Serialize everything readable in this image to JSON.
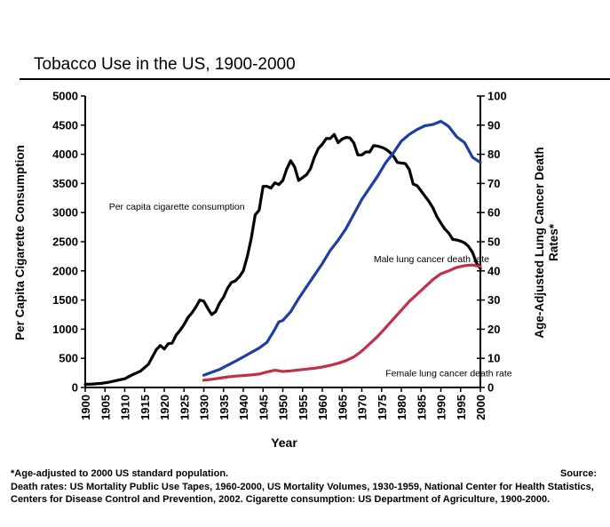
{
  "chart_data": {
    "type": "line",
    "title": "Tobacco Use in the US, 1900-2000",
    "xlabel": "Year",
    "ylabel_left": "Per Capita Cigarette Consumption",
    "ylabel_right": "Age-Adjusted Lung Cancer Death Rates*",
    "xlim": [
      1900,
      2000
    ],
    "ylim_left": [
      0,
      5000
    ],
    "ylim_right": [
      0,
      100
    ],
    "x_ticks": [
      "1900",
      "1905",
      "1910",
      "1915",
      "1920",
      "1925",
      "1930",
      "1935",
      "1940",
      "1945",
      "1950",
      "1955",
      "1960",
      "1965",
      "1970",
      "1975",
      "1980",
      "1985",
      "1990",
      "1995",
      "2000"
    ],
    "y_ticks_left": [
      "0",
      "500",
      "1000",
      "1500",
      "2000",
      "2500",
      "3000",
      "3500",
      "4000",
      "4500",
      "5000"
    ],
    "y_ticks_right": [
      "0",
      "10",
      "20",
      "30",
      "40",
      "50",
      "60",
      "70",
      "80",
      "90",
      "100"
    ],
    "grid": false,
    "series": [
      {
        "name": "Per capita cigarette consumption",
        "axis": "left",
        "color": "#000000",
        "label_pos": [
          1906,
          3050
        ],
        "points": [
          [
            1900,
            54
          ],
          [
            1902,
            60
          ],
          [
            1904,
            70
          ],
          [
            1906,
            90
          ],
          [
            1908,
            120
          ],
          [
            1910,
            150
          ],
          [
            1912,
            220
          ],
          [
            1914,
            280
          ],
          [
            1916,
            400
          ],
          [
            1918,
            650
          ],
          [
            1919,
            720
          ],
          [
            1920,
            660
          ],
          [
            1921,
            750
          ],
          [
            1922,
            760
          ],
          [
            1923,
            900
          ],
          [
            1924,
            980
          ],
          [
            1925,
            1080
          ],
          [
            1926,
            1200
          ],
          [
            1927,
            1280
          ],
          [
            1928,
            1380
          ],
          [
            1929,
            1500
          ],
          [
            1930,
            1480
          ],
          [
            1931,
            1360
          ],
          [
            1932,
            1250
          ],
          [
            1933,
            1300
          ],
          [
            1934,
            1450
          ],
          [
            1935,
            1550
          ],
          [
            1936,
            1700
          ],
          [
            1937,
            1800
          ],
          [
            1938,
            1830
          ],
          [
            1939,
            1900
          ],
          [
            1940,
            2000
          ],
          [
            1941,
            2240
          ],
          [
            1942,
            2550
          ],
          [
            1943,
            2960
          ],
          [
            1944,
            3040
          ],
          [
            1945,
            3450
          ],
          [
            1946,
            3450
          ],
          [
            1947,
            3420
          ],
          [
            1948,
            3510
          ],
          [
            1949,
            3480
          ],
          [
            1950,
            3550
          ],
          [
            1951,
            3750
          ],
          [
            1952,
            3890
          ],
          [
            1953,
            3780
          ],
          [
            1954,
            3550
          ],
          [
            1955,
            3600
          ],
          [
            1956,
            3650
          ],
          [
            1957,
            3750
          ],
          [
            1958,
            3950
          ],
          [
            1959,
            4100
          ],
          [
            1960,
            4170
          ],
          [
            1961,
            4270
          ],
          [
            1962,
            4270
          ],
          [
            1963,
            4340
          ],
          [
            1964,
            4200
          ],
          [
            1965,
            4260
          ],
          [
            1966,
            4290
          ],
          [
            1967,
            4280
          ],
          [
            1968,
            4190
          ],
          [
            1969,
            3990
          ],
          [
            1970,
            3990
          ],
          [
            1971,
            4040
          ],
          [
            1972,
            4040
          ],
          [
            1973,
            4150
          ],
          [
            1974,
            4140
          ],
          [
            1975,
            4120
          ],
          [
            1976,
            4090
          ],
          [
            1977,
            4040
          ],
          [
            1978,
            3970
          ],
          [
            1979,
            3860
          ],
          [
            1980,
            3850
          ],
          [
            1981,
            3840
          ],
          [
            1982,
            3740
          ],
          [
            1983,
            3490
          ],
          [
            1984,
            3460
          ],
          [
            1985,
            3370
          ],
          [
            1986,
            3280
          ],
          [
            1987,
            3190
          ],
          [
            1988,
            3080
          ],
          [
            1989,
            2930
          ],
          [
            1990,
            2820
          ],
          [
            1991,
            2720
          ],
          [
            1992,
            2650
          ],
          [
            1993,
            2540
          ],
          [
            1994,
            2530
          ],
          [
            1995,
            2510
          ],
          [
            1996,
            2480
          ],
          [
            1997,
            2420
          ],
          [
            1998,
            2320
          ],
          [
            1999,
            2140
          ],
          [
            2000,
            2040
          ]
        ]
      },
      {
        "name": "Male lung cancer death rate",
        "axis": "right",
        "color": "#1f3fa0",
        "label_pos": [
          1973,
          43
        ],
        "points": [
          [
            1930,
            4.2
          ],
          [
            1932,
            5.2
          ],
          [
            1934,
            6.2
          ],
          [
            1936,
            7.6
          ],
          [
            1938,
            9.0
          ],
          [
            1940,
            10.5
          ],
          [
            1942,
            12.0
          ],
          [
            1944,
            13.5
          ],
          [
            1946,
            15.5
          ],
          [
            1948,
            20.0
          ],
          [
            1949,
            22.5
          ],
          [
            1950,
            23.0
          ],
          [
            1952,
            26.0
          ],
          [
            1954,
            30.5
          ],
          [
            1956,
            34.5
          ],
          [
            1958,
            38.5
          ],
          [
            1960,
            42.5
          ],
          [
            1962,
            47.0
          ],
          [
            1964,
            50.5
          ],
          [
            1966,
            54.5
          ],
          [
            1968,
            59.5
          ],
          [
            1970,
            64.5
          ],
          [
            1972,
            68.5
          ],
          [
            1974,
            72.5
          ],
          [
            1976,
            77.0
          ],
          [
            1978,
            80.5
          ],
          [
            1980,
            84.5
          ],
          [
            1982,
            86.8
          ],
          [
            1984,
            88.5
          ],
          [
            1986,
            89.8
          ],
          [
            1988,
            90.2
          ],
          [
            1990,
            91.3
          ],
          [
            1991,
            90.5
          ],
          [
            1992,
            89.5
          ],
          [
            1994,
            86.0
          ],
          [
            1996,
            84.0
          ],
          [
            1998,
            79.0
          ],
          [
            2000,
            77.2
          ]
        ]
      },
      {
        "name": "Female lung cancer death rate",
        "axis": "right",
        "color": "#c0304a",
        "label_pos": [
          1976,
          3.8
        ],
        "points": [
          [
            1930,
            2.5
          ],
          [
            1932,
            2.8
          ],
          [
            1934,
            3.2
          ],
          [
            1936,
            3.6
          ],
          [
            1938,
            3.9
          ],
          [
            1940,
            4.1
          ],
          [
            1942,
            4.3
          ],
          [
            1944,
            4.6
          ],
          [
            1946,
            5.3
          ],
          [
            1948,
            5.9
          ],
          [
            1950,
            5.5
          ],
          [
            1952,
            5.7
          ],
          [
            1954,
            6.0
          ],
          [
            1956,
            6.3
          ],
          [
            1958,
            6.6
          ],
          [
            1960,
            7.0
          ],
          [
            1962,
            7.6
          ],
          [
            1964,
            8.3
          ],
          [
            1966,
            9.2
          ],
          [
            1968,
            10.5
          ],
          [
            1970,
            12.5
          ],
          [
            1972,
            15.0
          ],
          [
            1974,
            17.5
          ],
          [
            1976,
            20.5
          ],
          [
            1978,
            23.5
          ],
          [
            1980,
            26.5
          ],
          [
            1982,
            29.5
          ],
          [
            1984,
            32.0
          ],
          [
            1986,
            34.5
          ],
          [
            1988,
            37.0
          ],
          [
            1990,
            39.0
          ],
          [
            1992,
            40.0
          ],
          [
            1994,
            41.2
          ],
          [
            1996,
            41.8
          ],
          [
            1998,
            42.0
          ],
          [
            2000,
            41.5
          ]
        ]
      }
    ]
  },
  "footnote": {
    "line1": "*Age-adjusted to 2000 US standard population.",
    "source_label": "Source:",
    "line2": "Death rates: US Mortality Public Use Tapes, 1960-2000, US Mortality Volumes, 1930-1959, National Center for Health Statistics, Centers for Disease Control and Prevention, 2002. Cigarette consumption: US Department of Agriculture, 1900-2000."
  }
}
